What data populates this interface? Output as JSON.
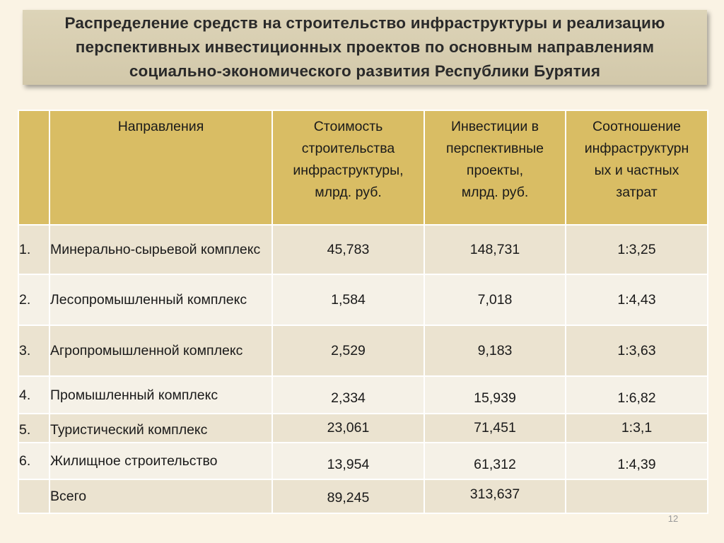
{
  "title": "Распределение средств на строительство инфраструктуры и реализацию\nперспективных инвестиционных проектов по основным направлениям\nсоциально-экономического развития Республики Бурятия",
  "table": {
    "headers": [
      "",
      "Направления",
      "Стоимость\nстроительства\nинфраструктуры,\nмлрд. руб.",
      "Инвестиции в\nперспективные\nпроекты,\nмлрд. руб.",
      "Соотношение\nинфраструктурн\nых и частных\nзатрат"
    ],
    "rows": [
      {
        "num": "1.",
        "name": "Минерально-сырьевой комплекс",
        "cost": "45,783",
        "invest": "148,731",
        "ratio": "1:3,25"
      },
      {
        "num": "2.",
        "name": "Лесопромышленный комплекс",
        "cost": "1,584",
        "invest": "7,018",
        "ratio": "1:4,43"
      },
      {
        "num": "3.",
        "name": "Агропромышленной комплекс",
        "cost": "2,529",
        "invest": "9,183",
        "ratio": "1:3,63"
      },
      {
        "num": "4.",
        "name": "Промышленный комплекс",
        "cost": "2,334",
        "invest": "15,939",
        "ratio": "1:6,82"
      },
      {
        "num": "5.",
        "name": "Туристический комплекс",
        "cost": "23,061",
        "invest": "71,451",
        "ratio": "1:3,1"
      },
      {
        "num": "6.",
        "name": "Жилищное строительство",
        "cost": "13,954",
        "invest": "61,312",
        "ratio": "1:4,39"
      },
      {
        "num": "",
        "name": "Всего",
        "cost": "89,245",
        "invest": "313,637",
        "ratio": ""
      }
    ]
  },
  "slide_number": "12"
}
